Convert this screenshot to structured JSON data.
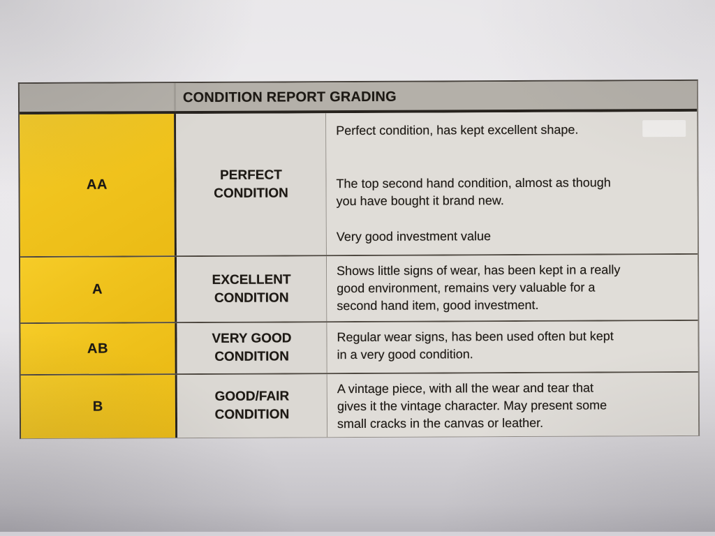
{
  "colors": {
    "grade_yellow": "#F0C31D",
    "header_gray": "#B4B0A9",
    "name_gray": "#DBD8D3",
    "desc_gray": "#E0DDD8",
    "text": "#1D1914",
    "paper": "#E8E6E9"
  },
  "table": {
    "title": "CONDITION REPORT GRADING",
    "rows": [
      {
        "grade": "AA",
        "name": "PERFECT\nCONDITION",
        "paragraphs": [
          "Perfect condition, has kept excellent shape.",
          "The top second hand condition, almost as though\nyou have bought it brand new.",
          "Very good investment value"
        ]
      },
      {
        "grade": "A",
        "name": "EXCELLENT\nCONDITION",
        "paragraphs": [
          "Shows little signs of wear, has been kept in a really\ngood environment, remains very valuable for a\nsecond hand item, good investment."
        ]
      },
      {
        "grade": "AB",
        "name": "VERY GOOD\nCONDITION",
        "paragraphs": [
          "Regular wear signs, has been used often but kept\nin a very good condition."
        ]
      },
      {
        "grade": "B",
        "name": "GOOD/FAIR\nCONDITION",
        "paragraphs": [
          "A vintage piece, with all the wear and tear that\ngives it the vintage character. May present some\nsmall cracks in the canvas or leather."
        ]
      }
    ]
  }
}
